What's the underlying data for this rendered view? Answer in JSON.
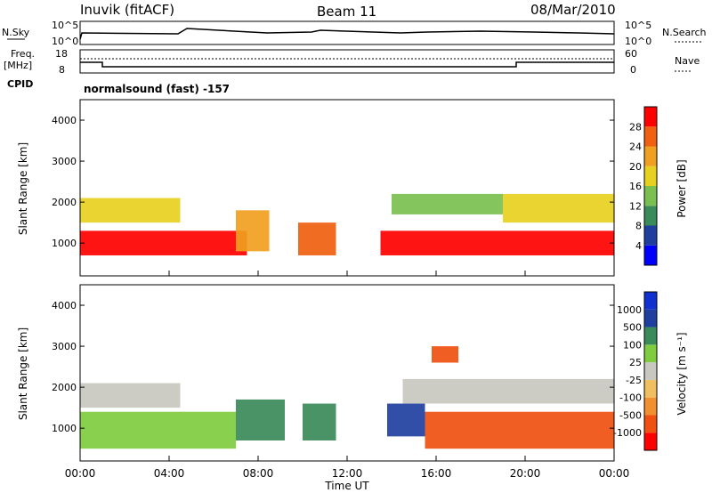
{
  "header": {
    "station": "Inuvik (fitACF)",
    "beam": "Beam 11",
    "date": "08/Mar/2010"
  },
  "panels": {
    "nsky": {
      "label": "N.Sky",
      "tick_top": "10^5",
      "tick_bottom": "10^0",
      "right_label": "N.Search",
      "right_tick_top": "10^5",
      "right_tick_bottom": "10^0"
    },
    "freq": {
      "label_line1": "Freq.",
      "label_line2": "[MHz]",
      "tick_top": "18",
      "tick_bottom": "8",
      "right_label": "Nave",
      "right_tick_top": "60",
      "right_tick_bottom": "0"
    },
    "cpid": {
      "label": "CPID",
      "text": "normalsound (fast) -157"
    }
  },
  "colors": {
    "power": [
      "#0000ff",
      "#1f3f9f",
      "#3a8a5a",
      "#7ac050",
      "#e8d020",
      "#f0a020",
      "#f06010",
      "#ff0000"
    ],
    "velocity": [
      "#ff0000",
      "#f05010",
      "#f09030",
      "#f0c060",
      "#c8c8c0",
      "#80cc40",
      "#3a8a5a",
      "#2040a0",
      "#1030d0"
    ]
  },
  "chart_data": [
    {
      "type": "heatmap",
      "name": "Power",
      "ylabel": "Slant Range [km]",
      "yticks": [
        "1000",
        "2000",
        "3000",
        "4000"
      ],
      "colorbar_label": "Power [dB]",
      "colorbar_ticks": [
        "4",
        "8",
        "12",
        "16",
        "20",
        "24",
        "28"
      ],
      "bands": [
        {
          "t0": 0.0,
          "t1": 7.5,
          "r0": 700,
          "r1": 1300,
          "level": 7
        },
        {
          "t0": 0.0,
          "t1": 4.5,
          "r0": 1500,
          "r1": 2100,
          "level": 4
        },
        {
          "t0": 7.0,
          "t1": 8.5,
          "r0": 800,
          "r1": 1800,
          "level": 5
        },
        {
          "t0": 9.8,
          "t1": 11.5,
          "r0": 700,
          "r1": 1500,
          "level": 6
        },
        {
          "t0": 14.0,
          "t1": 19.0,
          "r0": 1700,
          "r1": 2200,
          "level": 3
        },
        {
          "t0": 13.5,
          "t1": 24.0,
          "r0": 700,
          "r1": 1300,
          "level": 7
        },
        {
          "t0": 19.0,
          "t1": 24.0,
          "r0": 1500,
          "r1": 2200,
          "level": 4
        }
      ]
    },
    {
      "type": "heatmap",
      "name": "Velocity",
      "ylabel": "Slant Range [km]",
      "yticks": [
        "1000",
        "2000",
        "3000",
        "4000"
      ],
      "xlabel": "Time UT",
      "xticks": [
        "00:00",
        "04:00",
        "08:00",
        "12:00",
        "16:00",
        "20:00",
        "00:00"
      ],
      "colorbar_label": "Velocity [m s⁻¹]",
      "colorbar_ticks": [
        "-1000",
        "-500",
        "-100",
        "-25",
        "25",
        "100",
        "500",
        "1000"
      ],
      "bands": [
        {
          "t0": 0.0,
          "t1": 7.0,
          "r0": 500,
          "r1": 1400,
          "level": 5
        },
        {
          "t0": 0.0,
          "t1": 4.5,
          "r0": 1500,
          "r1": 2100,
          "level": 4
        },
        {
          "t0": 7.0,
          "t1": 9.2,
          "r0": 700,
          "r1": 1700,
          "level": 6
        },
        {
          "t0": 10.0,
          "t1": 11.5,
          "r0": 700,
          "r1": 1600,
          "level": 6
        },
        {
          "t0": 13.8,
          "t1": 15.5,
          "r0": 800,
          "r1": 1600,
          "level": 7
        },
        {
          "t0": 15.5,
          "t1": 24.0,
          "r0": 500,
          "r1": 1400,
          "level": 1
        },
        {
          "t0": 14.5,
          "t1": 24.0,
          "r0": 1600,
          "r1": 2200,
          "level": 4
        },
        {
          "t0": 15.8,
          "t1": 17.0,
          "r0": 2600,
          "r1": 3000,
          "level": 1
        }
      ]
    }
  ]
}
